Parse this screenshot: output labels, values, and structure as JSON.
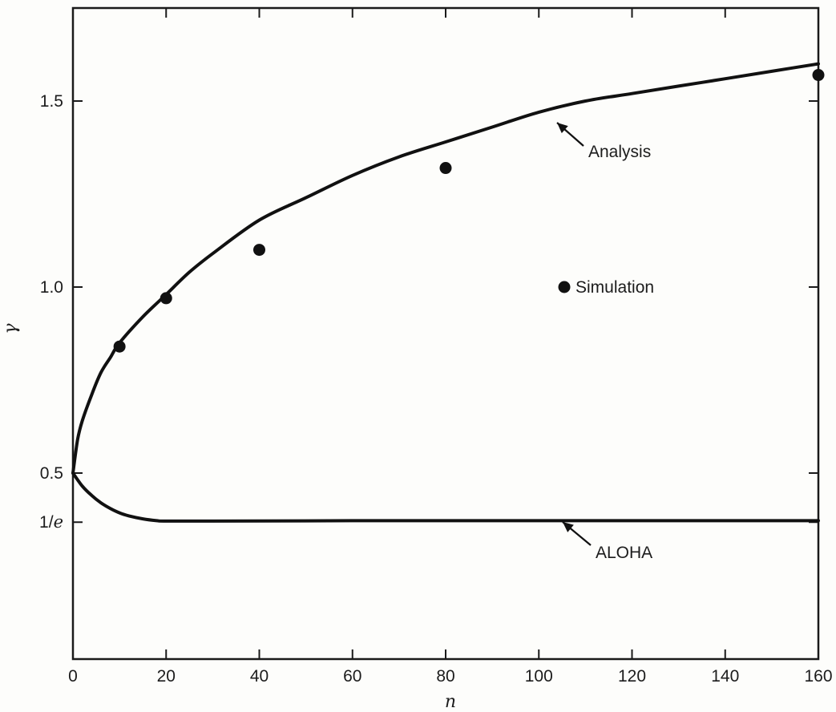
{
  "chart_data": {
    "type": "line",
    "title": "",
    "xlabel": "n",
    "ylabel": "γ",
    "xlim": [
      0,
      160
    ],
    "ylim": [
      0,
      1.75
    ],
    "grid": false,
    "x_ticks": [
      {
        "value": 0,
        "label": "0"
      },
      {
        "value": 20,
        "label": "20"
      },
      {
        "value": 40,
        "label": "40"
      },
      {
        "value": 60,
        "label": "60"
      },
      {
        "value": 80,
        "label": "80"
      },
      {
        "value": 100,
        "label": "100"
      },
      {
        "value": 120,
        "label": "120"
      },
      {
        "value": 140,
        "label": "140"
      },
      {
        "value": 160,
        "label": "160"
      }
    ],
    "y_ticks": [
      {
        "value": 0.368,
        "label": "1/e"
      },
      {
        "value": 0.5,
        "label": "0.5"
      },
      {
        "value": 1.0,
        "label": "1.0"
      },
      {
        "value": 1.5,
        "label": "1.5"
      }
    ],
    "series": [
      {
        "name": "Analysis",
        "kind": "line",
        "x": [
          0,
          1,
          2,
          4,
          6,
          8,
          10,
          15,
          20,
          25,
          30,
          40,
          50,
          60,
          70,
          80,
          90,
          100,
          110,
          120,
          130,
          140,
          150,
          160
        ],
        "y": [
          0.5,
          0.59,
          0.64,
          0.71,
          0.77,
          0.81,
          0.85,
          0.92,
          0.98,
          1.04,
          1.09,
          1.18,
          1.24,
          1.3,
          1.35,
          1.39,
          1.43,
          1.47,
          1.5,
          1.52,
          1.54,
          1.56,
          1.58,
          1.6
        ]
      },
      {
        "name": "ALOHA",
        "kind": "line",
        "x": [
          0,
          2,
          4,
          6,
          8,
          10,
          12,
          15,
          18,
          20,
          30,
          60,
          100,
          160
        ],
        "y": [
          0.5,
          0.465,
          0.44,
          0.42,
          0.405,
          0.393,
          0.385,
          0.377,
          0.372,
          0.371,
          0.371,
          0.372,
          0.372,
          0.372
        ]
      },
      {
        "name": "Simulation",
        "kind": "scatter",
        "x": [
          10,
          20,
          40,
          80,
          160
        ],
        "y": [
          0.84,
          0.97,
          1.1,
          1.32,
          1.57
        ]
      }
    ],
    "annotations": {
      "analysis_label": "Analysis",
      "aloha_label": "ALOHA",
      "simulation_label": "Simulation"
    },
    "legend": "inside-right"
  }
}
